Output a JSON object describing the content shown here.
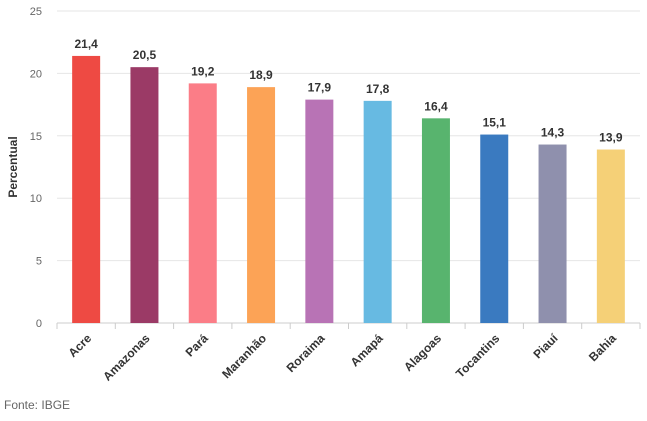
{
  "chart_data": {
    "type": "bar",
    "categories": [
      "Acre",
      "Amazonas",
      "Pará",
      "Maranhão",
      "Roraima",
      "Amapá",
      "Alagoas",
      "Tocantins",
      "Piauí",
      "Bahia"
    ],
    "values": [
      21.4,
      20.5,
      19.2,
      18.9,
      17.9,
      17.8,
      16.4,
      15.1,
      14.3,
      13.9
    ],
    "value_labels": [
      "21,4",
      "20,5",
      "19,2",
      "18,9",
      "17,9",
      "17,8",
      "16,4",
      "15,1",
      "14,3",
      "13,9"
    ],
    "colors": [
      "#ee4a43",
      "#9b3a66",
      "#fb7d87",
      "#fca356",
      "#b873b5",
      "#67bae2",
      "#58b46e",
      "#3a7ac0",
      "#8f90ad",
      "#f5d077"
    ],
    "ylabel": "Percentual",
    "xlabel": "",
    "ylim": [
      0,
      25
    ],
    "yticks": [
      0,
      5,
      10,
      15,
      20,
      25
    ],
    "grid": true,
    "legend": "none"
  },
  "source": "Fonte: IBGE"
}
